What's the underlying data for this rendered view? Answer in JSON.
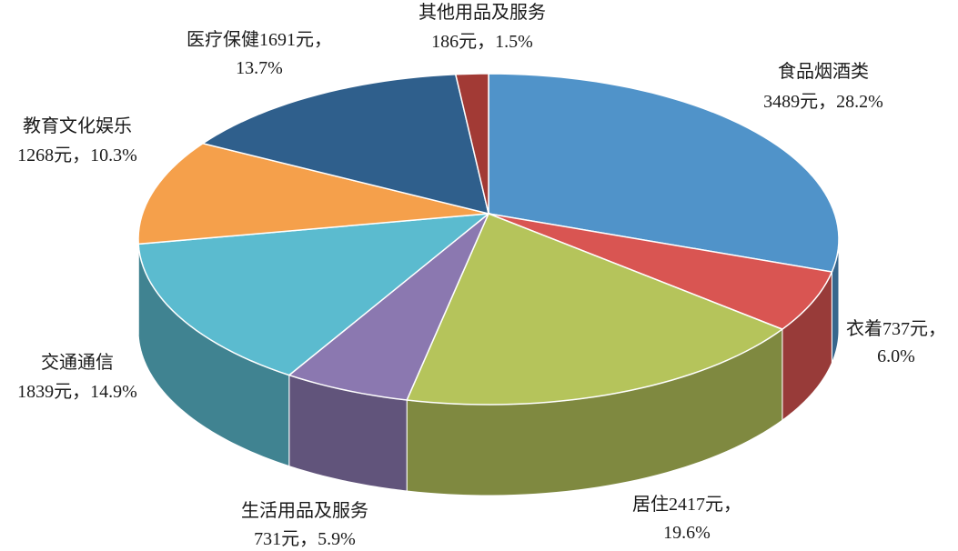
{
  "chart_data": {
    "type": "pie3d",
    "categories": [
      "食品烟酒类",
      "衣着",
      "居住",
      "生活用品及服务",
      "交通通信",
      "教育文化娱乐",
      "医疗保健",
      "其他用品及服务"
    ],
    "amounts": [
      3489,
      737,
      2417,
      731,
      1839,
      1268,
      1691,
      186
    ],
    "amount_labels": [
      "3489元，",
      "737元，",
      "2417元，",
      "731元，",
      "1839元，",
      "1268元，",
      "1691元，",
      "186元，"
    ],
    "values": [
      28.2,
      6.0,
      19.6,
      5.9,
      14.9,
      10.3,
      13.7,
      1.5
    ],
    "value_labels": [
      "28.2%",
      "6.0%",
      "19.6%",
      "5.9%",
      "14.9%",
      "10.3%",
      "13.7%",
      "1.5%"
    ],
    "colors": [
      "#5093c9",
      "#d95552",
      "#b5c45b",
      "#8b78b0",
      "#5bbbcf",
      "#f5a04b",
      "#2f5f8c",
      "#a23a35"
    ]
  }
}
